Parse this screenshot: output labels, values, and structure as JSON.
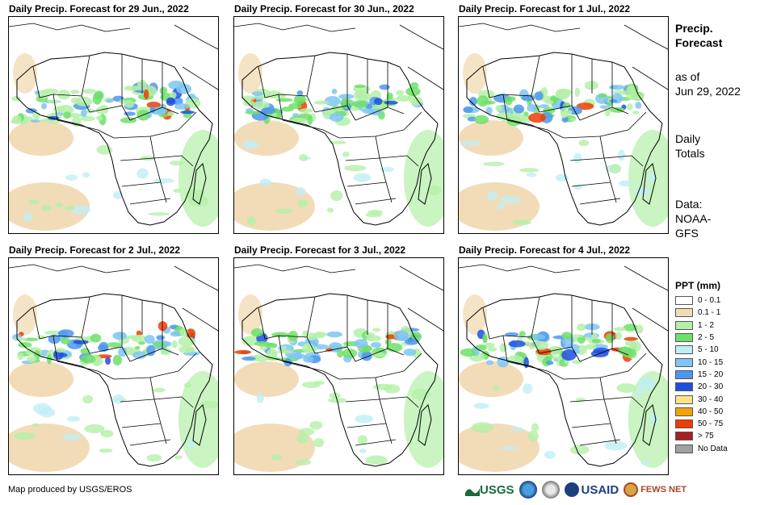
{
  "panels": [
    {
      "title": "Daily Precip. Forecast for 29 Jun., 2022"
    },
    {
      "title": "Daily Precip. Forecast for 30 Jun., 2022"
    },
    {
      "title": "Daily Precip. Forecast for 1 Jul., 2022"
    },
    {
      "title": "Daily Precip. Forecast for 2 Jul., 2022"
    },
    {
      "title": "Daily Precip. Forecast for 3 Jul., 2022"
    },
    {
      "title": "Daily Precip. Forecast for 4 Jul., 2022"
    }
  ],
  "side": {
    "title_line1": "Precip.",
    "title_line2": "Forecast",
    "asof_line1": "as of",
    "asof_line2": "Jun 29, 2022",
    "totals_line1": "Daily",
    "totals_line2": "Totals",
    "data_line1": "Data:",
    "data_line2": "NOAA-",
    "data_line3": "GFS"
  },
  "legend": {
    "title": "PPT (mm)",
    "items": [
      {
        "label": "0 - 0.1",
        "color": "#ffffff"
      },
      {
        "label": "0.1 - 1",
        "color": "#f2dcb8"
      },
      {
        "label": "1 - 2",
        "color": "#b4f0a8"
      },
      {
        "label": "2 - 5",
        "color": "#6ee06a"
      },
      {
        "label": "5 - 10",
        "color": "#bfeff5"
      },
      {
        "label": "10 - 15",
        "color": "#7ec6f5"
      },
      {
        "label": "15 - 20",
        "color": "#4d96ef"
      },
      {
        "label": "20 - 30",
        "color": "#1e50e0"
      },
      {
        "label": "30 - 40",
        "color": "#fbe38a"
      },
      {
        "label": "40 - 50",
        "color": "#f5a200"
      },
      {
        "label": "50 - 75",
        "color": "#f03c00"
      },
      {
        "label": "> 75",
        "color": "#a82020"
      },
      {
        "label": "No Data",
        "color": "#a0a0a0"
      }
    ]
  },
  "footer": {
    "credit": "Map produced by USGS/EROS",
    "logo_usgs": "USGS",
    "logo_usaid": "USAID",
    "logo_fews": "FEWS NET"
  }
}
